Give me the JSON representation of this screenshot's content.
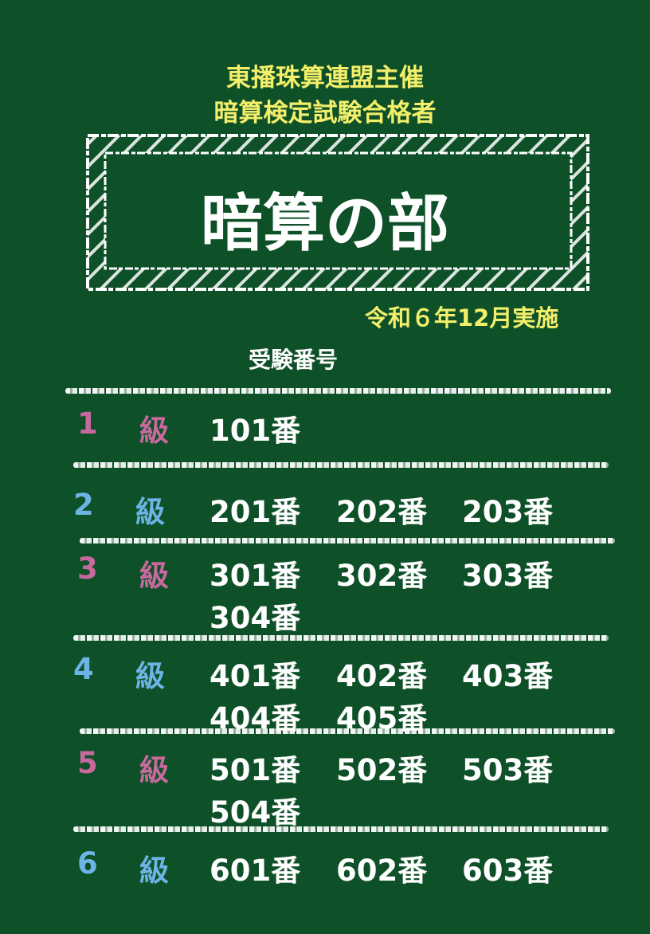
{
  "header": {
    "organizer": "東播珠算連盟主催",
    "subtitle": "暗算検定試験合格者"
  },
  "title": "暗算の部",
  "date": "令和６年12月実施",
  "column_label": "受験番号",
  "colors": {
    "background": "#0e5028",
    "header_text": "#f4ef6a",
    "grade_odd": "#c8699e",
    "grade_even": "#6cb4e4",
    "chalk": "#ffffff"
  },
  "grades": [
    {
      "grade": "1",
      "unit": "級",
      "color": "pink",
      "numbers": [
        "101番"
      ]
    },
    {
      "grade": "2",
      "unit": "級",
      "color": "blue",
      "numbers": [
        "201番",
        "202番",
        "203番"
      ]
    },
    {
      "grade": "3",
      "unit": "級",
      "color": "pink",
      "numbers": [
        "301番",
        "302番",
        "303番",
        "304番"
      ]
    },
    {
      "grade": "4",
      "unit": "級",
      "color": "blue",
      "numbers": [
        "401番",
        "402番",
        "403番",
        "404番",
        "405番"
      ]
    },
    {
      "grade": "5",
      "unit": "級",
      "color": "pink",
      "numbers": [
        "501番",
        "502番",
        "503番",
        "504番"
      ]
    },
    {
      "grade": "6",
      "unit": "級",
      "color": "blue",
      "numbers": [
        "601番",
        "602番",
        "603番"
      ]
    }
  ]
}
